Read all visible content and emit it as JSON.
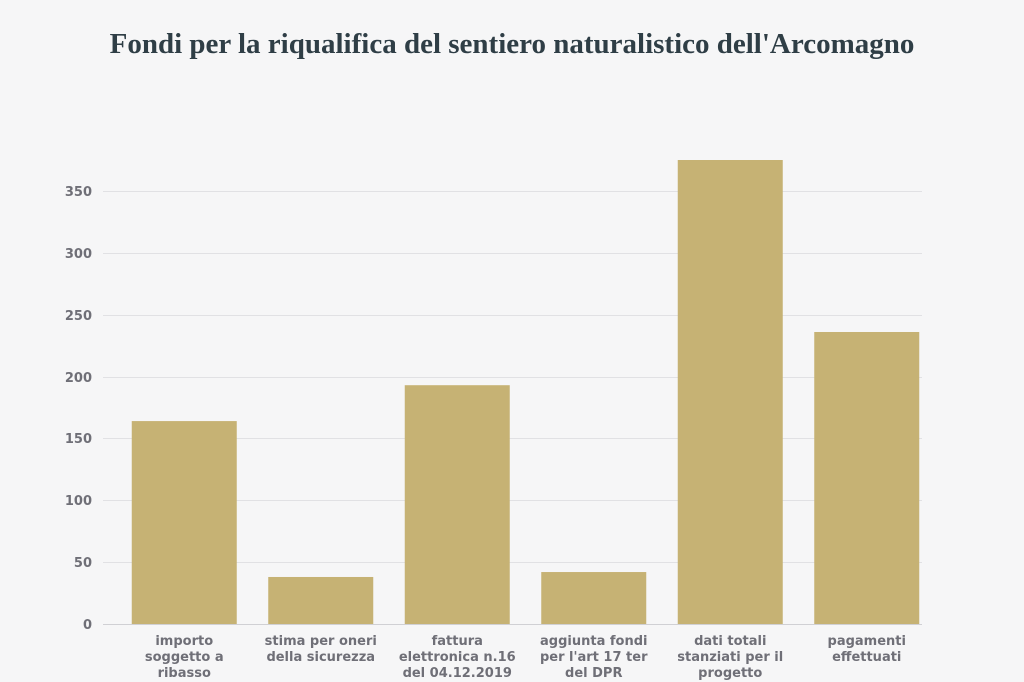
{
  "chart_data": {
    "type": "bar",
    "title": "Fondi per la riqualifica del sentiero naturalistico dell'Arcomagno",
    "xlabel": "",
    "ylabel": "",
    "ylim": [
      0,
      375
    ],
    "yticks": [
      0,
      50,
      100,
      150,
      200,
      250,
      300,
      350
    ],
    "grid": true,
    "bar_color": "#c6b274",
    "categories": [
      [
        "importo",
        "soggetto a",
        "ribasso"
      ],
      [
        "stima per oneri",
        "della sicurezza"
      ],
      [
        "fattura",
        "elettronica n.16",
        "del 04.12.2019"
      ],
      [
        "aggiunta fondi",
        "per l'art 17 ter",
        "del DPR"
      ],
      [
        "dati totali",
        "stanziati per il",
        "progetto"
      ],
      [
        "pagamenti",
        "effettuati"
      ]
    ],
    "values": [
      164,
      38,
      193,
      42,
      375,
      236
    ]
  }
}
